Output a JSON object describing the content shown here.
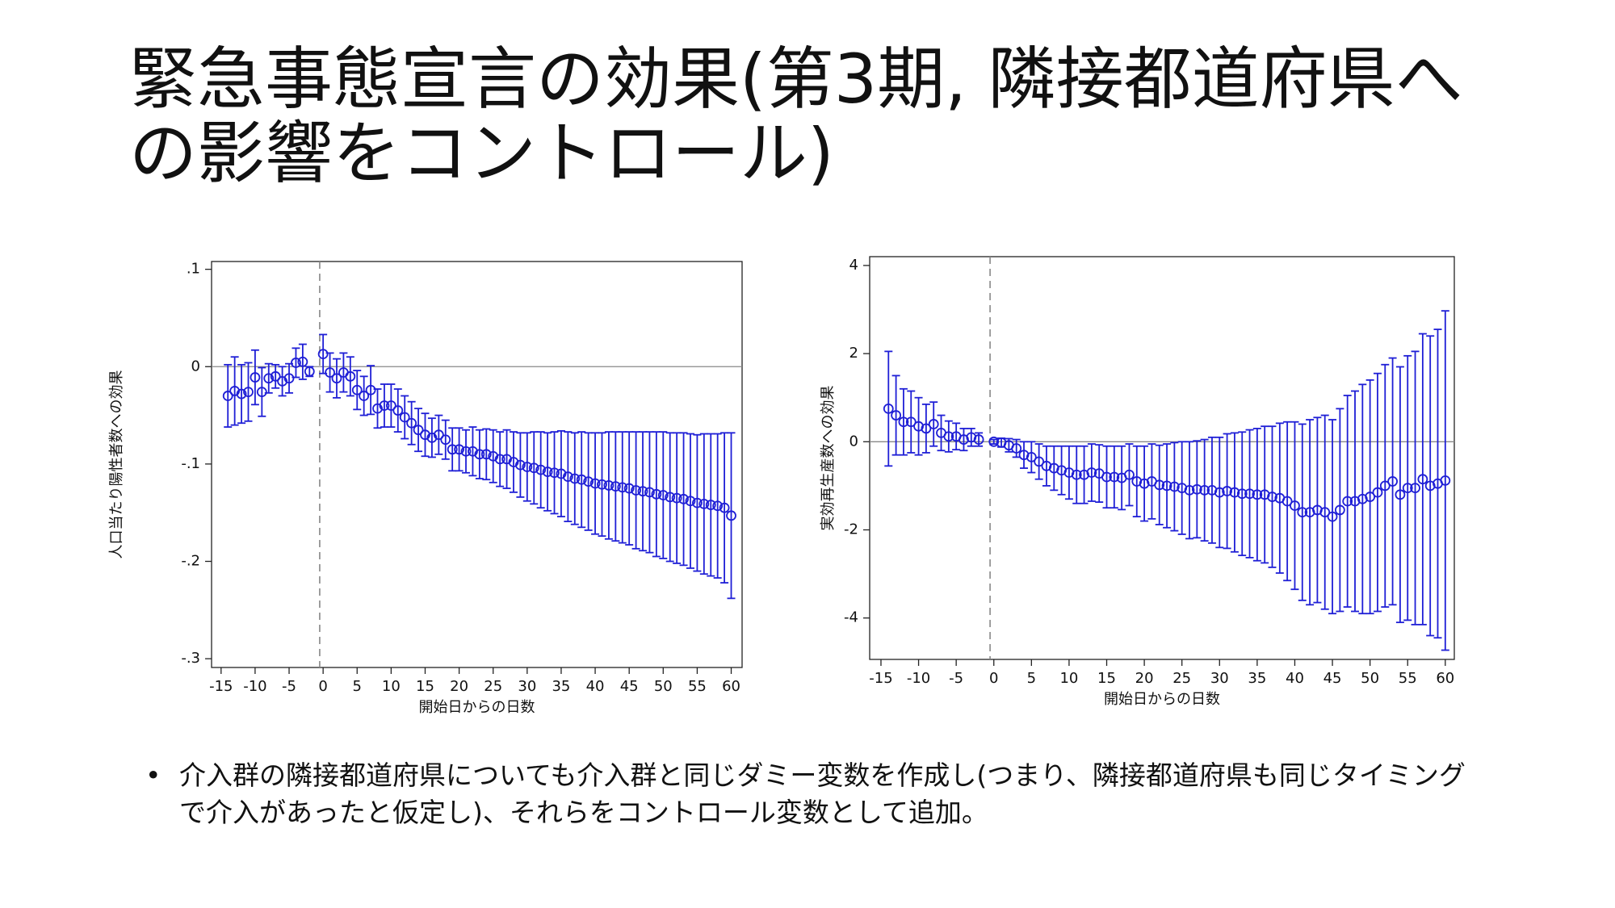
{
  "title": "緊急事態宣言の効果(第3期, 隣接都道府県への影響をコントロール)",
  "bullet": "介入群の隣接都道府県についても介入群と同じダミー変数を作成し(つまり、隣接都道府県も同じタイミングで介入があったと仮定し)、それらをコントロール変数として追加。",
  "chart_data": [
    {
      "type": "errorbar",
      "color": "#1f1fd6",
      "x_label": "開始日からの日数",
      "y_label": "人口当たり陽性者数への効果",
      "xlim": [
        -16.4,
        61.6
      ],
      "ylim": [
        -0.309,
        0.108
      ],
      "xticks": [
        -15,
        -10,
        -5,
        0,
        5,
        10,
        15,
        20,
        25,
        30,
        35,
        40,
        45,
        50,
        55,
        60
      ],
      "yticks": [
        {
          "value": 0.1,
          "label": ".1"
        },
        0,
        {
          "value": -0.1,
          "label": "-.1"
        },
        {
          "value": -0.2,
          "label": "-.2"
        },
        {
          "value": -0.3,
          "label": "-.3"
        }
      ],
      "reference_line_x": -0.5,
      "reference_line_y": 0,
      "x": [
        -14,
        -13,
        -12,
        -11,
        -10,
        -9,
        -8,
        -7,
        -6,
        -5,
        -4,
        -3,
        -2,
        0,
        1,
        2,
        3,
        4,
        5,
        6,
        7,
        8,
        9,
        10,
        11,
        12,
        13,
        14,
        15,
        16,
        17,
        18,
        19,
        20,
        21,
        22,
        23,
        24,
        25,
        26,
        27,
        28,
        29,
        30,
        31,
        32,
        33,
        34,
        35,
        36,
        37,
        38,
        39,
        40,
        41,
        42,
        43,
        44,
        45,
        46,
        47,
        48,
        49,
        50,
        51,
        52,
        53,
        54,
        55,
        56,
        57,
        58,
        59,
        60
      ],
      "values": [
        -0.03,
        -0.025,
        -0.028,
        -0.026,
        -0.011,
        -0.026,
        -0.012,
        -0.01,
        -0.015,
        -0.012,
        0.004,
        0.005,
        -0.005,
        0.013,
        -0.006,
        -0.012,
        -0.006,
        -0.01,
        -0.024,
        -0.03,
        -0.024,
        -0.043,
        -0.04,
        -0.04,
        -0.045,
        -0.052,
        -0.058,
        -0.065,
        -0.07,
        -0.073,
        -0.07,
        -0.075,
        -0.085,
        -0.085,
        -0.087,
        -0.087,
        -0.09,
        -0.09,
        -0.092,
        -0.095,
        -0.095,
        -0.098,
        -0.101,
        -0.103,
        -0.104,
        -0.106,
        -0.108,
        -0.109,
        -0.11,
        -0.113,
        -0.115,
        -0.116,
        -0.118,
        -0.12,
        -0.121,
        -0.122,
        -0.123,
        -0.124,
        -0.125,
        -0.127,
        -0.128,
        -0.129,
        -0.131,
        -0.132,
        -0.134,
        -0.135,
        -0.136,
        -0.138,
        -0.14,
        -0.141,
        -0.142,
        -0.143,
        -0.145,
        -0.153
      ],
      "errors": [
        0.032,
        0.035,
        0.03,
        0.03,
        0.028,
        0.025,
        0.015,
        0.012,
        0.015,
        0.015,
        0.015,
        0.018,
        0.005,
        0.02,
        0.02,
        0.02,
        0.02,
        0.02,
        0.02,
        0.02,
        0.025,
        0.02,
        0.022,
        0.022,
        0.022,
        0.022,
        0.022,
        0.022,
        0.022,
        0.02,
        0.02,
        0.02,
        0.022,
        0.022,
        0.022,
        0.025,
        0.025,
        0.026,
        0.027,
        0.028,
        0.03,
        0.031,
        0.033,
        0.035,
        0.037,
        0.039,
        0.04,
        0.042,
        0.044,
        0.046,
        0.047,
        0.049,
        0.05,
        0.052,
        0.053,
        0.055,
        0.056,
        0.057,
        0.058,
        0.06,
        0.061,
        0.062,
        0.064,
        0.065,
        0.066,
        0.067,
        0.068,
        0.069,
        0.07,
        0.072,
        0.073,
        0.074,
        0.077,
        0.085
      ]
    },
    {
      "type": "errorbar",
      "color": "#1f1fd6",
      "x_label": "開始日からの日数",
      "y_label": "実効再生産数への効果",
      "xlim": [
        -16.5,
        61.2
      ],
      "ylim": [
        -4.94,
        4.2
      ],
      "xticks": [
        -15,
        -10,
        -5,
        0,
        5,
        10,
        15,
        20,
        25,
        30,
        35,
        40,
        45,
        50,
        55,
        60
      ],
      "yticks": [
        4,
        2,
        0,
        -2,
        -4
      ],
      "reference_line_x": -0.5,
      "reference_line_y": 0,
      "x": [
        -14,
        -13,
        -12,
        -11,
        -10,
        -9,
        -8,
        -7,
        -6,
        -5,
        -4,
        -3,
        -2,
        0,
        1,
        2,
        3,
        4,
        5,
        6,
        7,
        8,
        9,
        10,
        11,
        12,
        13,
        14,
        15,
        16,
        17,
        18,
        19,
        20,
        21,
        22,
        23,
        24,
        25,
        26,
        27,
        28,
        29,
        30,
        31,
        32,
        33,
        34,
        35,
        36,
        37,
        38,
        39,
        40,
        41,
        42,
        43,
        44,
        45,
        46,
        47,
        48,
        49,
        50,
        51,
        52,
        53,
        54,
        55,
        56,
        57,
        58,
        59,
        60
      ],
      "values": [
        0.75,
        0.6,
        0.45,
        0.45,
        0.35,
        0.3,
        0.4,
        0.2,
        0.12,
        0.12,
        0.05,
        0.1,
        0.05,
        0.0,
        -0.02,
        -0.08,
        -0.15,
        -0.3,
        -0.35,
        -0.45,
        -0.55,
        -0.6,
        -0.65,
        -0.7,
        -0.75,
        -0.75,
        -0.7,
        -0.72,
        -0.8,
        -0.8,
        -0.82,
        -0.75,
        -0.9,
        -0.95,
        -0.9,
        -0.98,
        -1.0,
        -1.02,
        -1.05,
        -1.1,
        -1.08,
        -1.1,
        -1.1,
        -1.15,
        -1.12,
        -1.15,
        -1.18,
        -1.18,
        -1.2,
        -1.2,
        -1.25,
        -1.28,
        -1.35,
        -1.45,
        -1.6,
        -1.6,
        -1.55,
        -1.6,
        -1.7,
        -1.55,
        -1.35,
        -1.35,
        -1.3,
        -1.25,
        -1.15,
        -1.0,
        -0.9,
        -1.2,
        -1.05,
        -1.05,
        -0.85,
        -1.0,
        -0.95,
        -0.88
      ],
      "errors": [
        1.3,
        0.9,
        0.75,
        0.7,
        0.65,
        0.55,
        0.5,
        0.4,
        0.35,
        0.3,
        0.25,
        0.2,
        0.15,
        0.05,
        0.1,
        0.15,
        0.2,
        0.3,
        0.35,
        0.4,
        0.45,
        0.5,
        0.55,
        0.6,
        0.65,
        0.65,
        0.65,
        0.65,
        0.7,
        0.7,
        0.72,
        0.7,
        0.8,
        0.85,
        0.85,
        0.9,
        0.95,
        1.0,
        1.05,
        1.1,
        1.1,
        1.15,
        1.2,
        1.25,
        1.3,
        1.35,
        1.4,
        1.45,
        1.5,
        1.55,
        1.6,
        1.7,
        1.8,
        1.9,
        2.0,
        2.1,
        2.1,
        2.2,
        2.2,
        2.3,
        2.4,
        2.5,
        2.6,
        2.65,
        2.7,
        2.75,
        2.8,
        2.9,
        3.0,
        3.1,
        3.3,
        3.4,
        3.5,
        3.85
      ]
    }
  ]
}
